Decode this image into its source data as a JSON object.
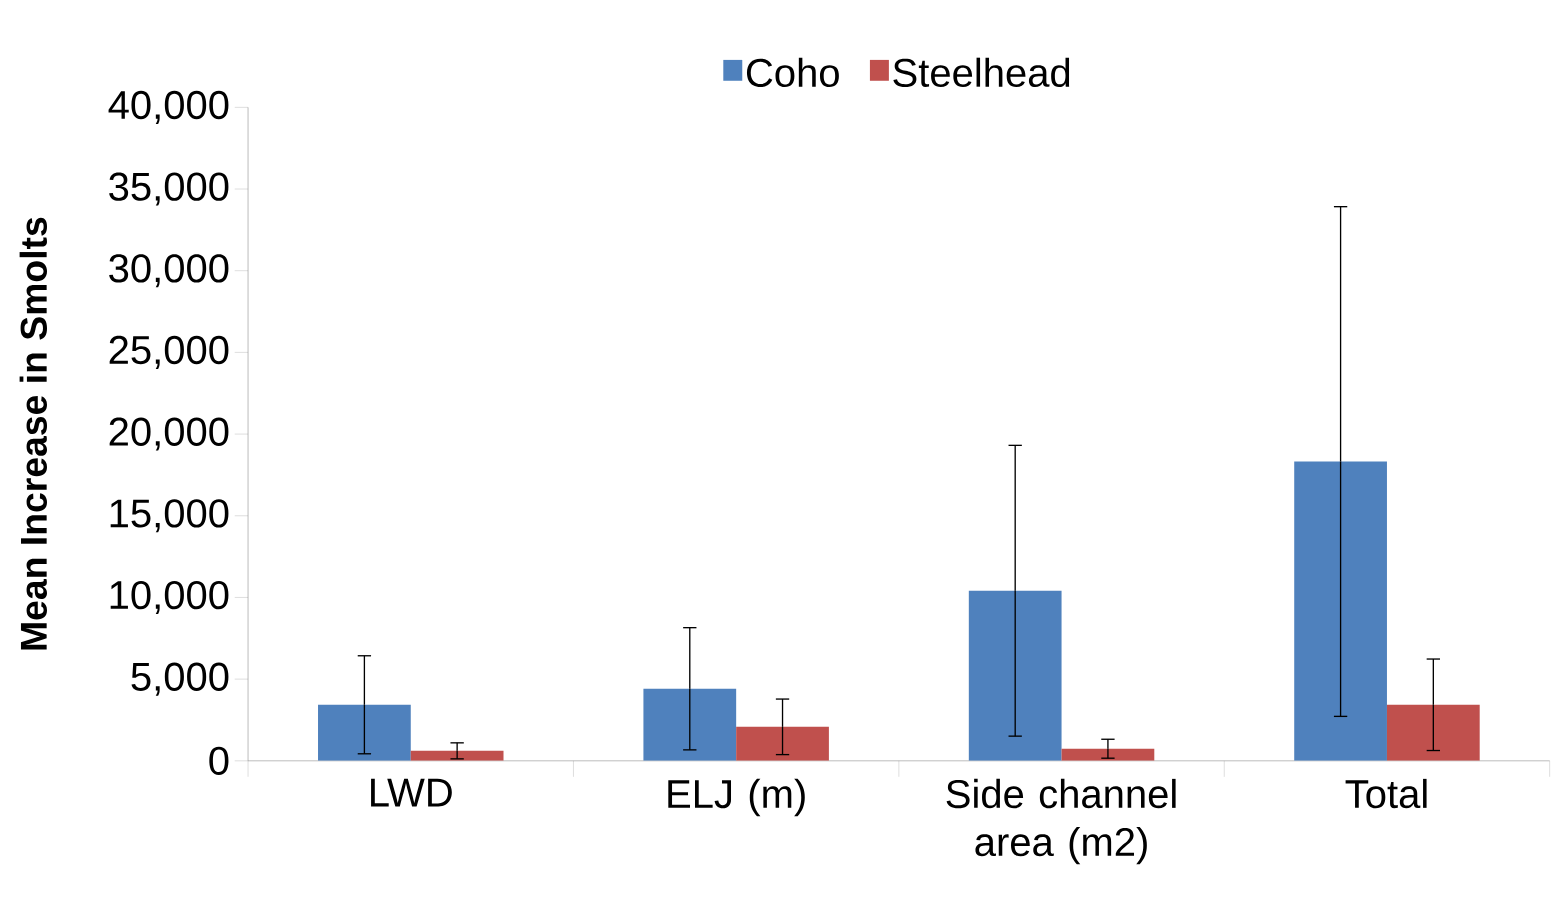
{
  "chart_data": {
    "type": "bar",
    "ylabel": "Mean Increase in Smolts",
    "categories": [
      "LWD",
      "ELJ (m)",
      "Side channel area (m2)",
      "Total"
    ],
    "series": [
      {
        "name": "Coho",
        "color": "#4f81bd",
        "values": [
          3430,
          4410,
          10410,
          18320
        ],
        "errors": [
          3000,
          3740,
          8900,
          15600
        ]
      },
      {
        "name": "Steelhead",
        "color": "#c0504d",
        "values": [
          610,
          2080,
          740,
          3430
        ],
        "errors": [
          490,
          1700,
          580,
          2800
        ]
      }
    ],
    "ylim": [
      0,
      40000
    ],
    "yticks": [
      {
        "value": 0,
        "label": "0"
      },
      {
        "value": 5000,
        "label": "5,000"
      },
      {
        "value": 10000,
        "label": "10,000"
      },
      {
        "value": 15000,
        "label": "15,000"
      },
      {
        "value": 20000,
        "label": "20,000"
      },
      {
        "value": 25000,
        "label": "25,000"
      },
      {
        "value": 30000,
        "label": "30,000"
      },
      {
        "value": 35000,
        "label": "35,000"
      },
      {
        "value": 40000,
        "label": "40,000"
      }
    ],
    "legend": "top",
    "grid": false
  }
}
